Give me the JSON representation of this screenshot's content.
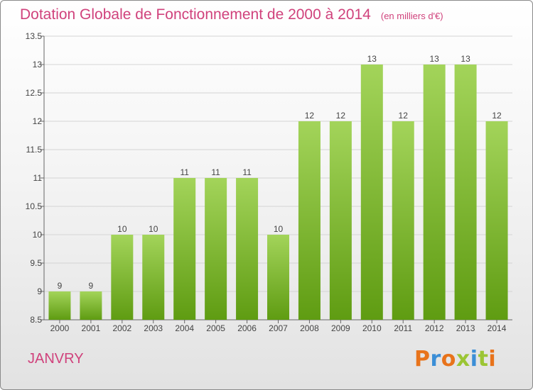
{
  "title": "Dotation Globale de Fonctionnement de 2000 à 2014",
  "unit": "(en milliers d'€)",
  "commune": "JANVRY",
  "logo": {
    "text": "Proxiti",
    "colors": [
      "#e8731b",
      "#3b8ed6",
      "#e8731b",
      "#9bc534",
      "#3b8ed6",
      "#9bc534",
      "#e8731b"
    ]
  },
  "colors": {
    "title": "#d0427c",
    "bar_top": "#a3d45a",
    "bar_bottom": "#5f9c12"
  },
  "chart_data": {
    "type": "bar",
    "categories": [
      "2000",
      "2001",
      "2002",
      "2003",
      "2004",
      "2005",
      "2006",
      "2007",
      "2008",
      "2009",
      "2010",
      "2011",
      "2012",
      "2013",
      "2014"
    ],
    "values": [
      9,
      9,
      10,
      10,
      11,
      11,
      11,
      10,
      12,
      12,
      13,
      12,
      13,
      13,
      12
    ],
    "ylim": [
      8.5,
      13.5
    ],
    "yticks": [
      "8.5",
      "9",
      "9.5",
      "10",
      "10.5",
      "11",
      "11.5",
      "12",
      "12.5",
      "13",
      "13.5"
    ],
    "grid": true
  }
}
